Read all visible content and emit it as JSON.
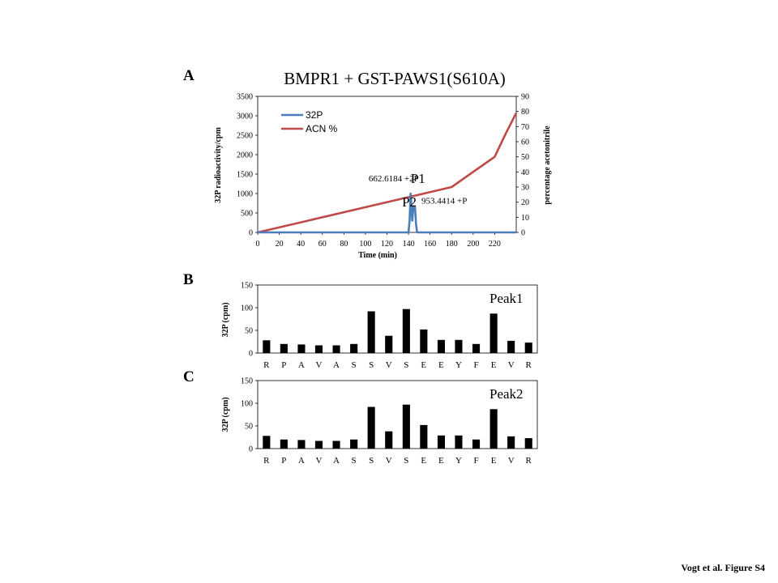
{
  "panel_labels": {
    "a": "A",
    "b": "B",
    "c": "C"
  },
  "footer": "Vogt et al. Figure S4",
  "colors": {
    "p32": "#4a7ebb",
    "acn": "#be4b48",
    "bar": "#000000",
    "axis": "#000000"
  },
  "chart_data": [
    {
      "type": "line",
      "title": "BMPR1 + GST-PAWS1(S610A)",
      "xlabel": "Time (min)",
      "ylabel": "32P radioactivity/cpm",
      "y2label": "percentage acetonitrile",
      "xlim": [
        0,
        240
      ],
      "ylim": [
        0,
        3500
      ],
      "y2lim": [
        0,
        90
      ],
      "xticks": [
        0,
        20,
        40,
        60,
        80,
        100,
        120,
        140,
        160,
        180,
        200,
        220
      ],
      "yticks": [
        0,
        500,
        1000,
        1500,
        2000,
        2500,
        3000,
        3500
      ],
      "y2ticks": [
        0,
        10,
        20,
        30,
        40,
        50,
        60,
        70,
        80,
        90
      ],
      "grid": false,
      "legend": "top-left",
      "series": [
        {
          "name": "32P",
          "axis": "left",
          "color": "#4a7ebb",
          "points": [
            [
              0,
              0
            ],
            [
              140,
              0
            ],
            [
              141,
              300
            ],
            [
              142,
              1000
            ],
            [
              143.5,
              300
            ],
            [
              144.5,
              650
            ],
            [
              146,
              650
            ],
            [
              147,
              200
            ],
            [
              148,
              0
            ],
            [
              240,
              0
            ]
          ]
        },
        {
          "name": "ACN %",
          "axis": "right",
          "color": "#be4b48",
          "points": [
            [
              0,
              0
            ],
            [
              180,
              30
            ],
            [
              190,
              35
            ],
            [
              200,
              40
            ],
            [
              210,
              45
            ],
            [
              220,
              50
            ],
            [
              230,
              65
            ],
            [
              240,
              79
            ]
          ]
        }
      ],
      "annotations": [
        {
          "text": "662.6184 +2P",
          "x": 103,
          "y": 1315,
          "size": "small"
        },
        {
          "text": "P1",
          "x": 142,
          "y": 1275,
          "size": "large"
        },
        {
          "text": "P2",
          "x": 134,
          "y": 670,
          "size": "large"
        },
        {
          "text": "953.4414 +P",
          "x": 152,
          "y": 740,
          "size": "small"
        }
      ]
    },
    {
      "type": "bar",
      "ylabel": "32P (cpm)",
      "ylim": [
        0,
        150
      ],
      "yticks": [
        0,
        50,
        100,
        150
      ],
      "annotation": "Peak1",
      "categories": [
        "R",
        "P",
        "A",
        "V",
        "A",
        "S",
        "S",
        "V",
        "S",
        "E",
        "E",
        "Y",
        "F",
        "E",
        "V",
        "R"
      ],
      "values": [
        28,
        20,
        19,
        17,
        17,
        20,
        92,
        38,
        97,
        52,
        29,
        29,
        20,
        87,
        27,
        23
      ]
    },
    {
      "type": "bar",
      "ylabel": "32P (cpm)",
      "ylim": [
        0,
        150
      ],
      "yticks": [
        0,
        50,
        100,
        150
      ],
      "annotation": "Peak2",
      "categories": [
        "R",
        "P",
        "A",
        "V",
        "A",
        "S",
        "S",
        "V",
        "S",
        "E",
        "E",
        "Y",
        "F",
        "E",
        "V",
        "R"
      ],
      "values": [
        28,
        20,
        19,
        17,
        17,
        20,
        92,
        38,
        97,
        52,
        29,
        29,
        20,
        87,
        27,
        23
      ]
    }
  ]
}
